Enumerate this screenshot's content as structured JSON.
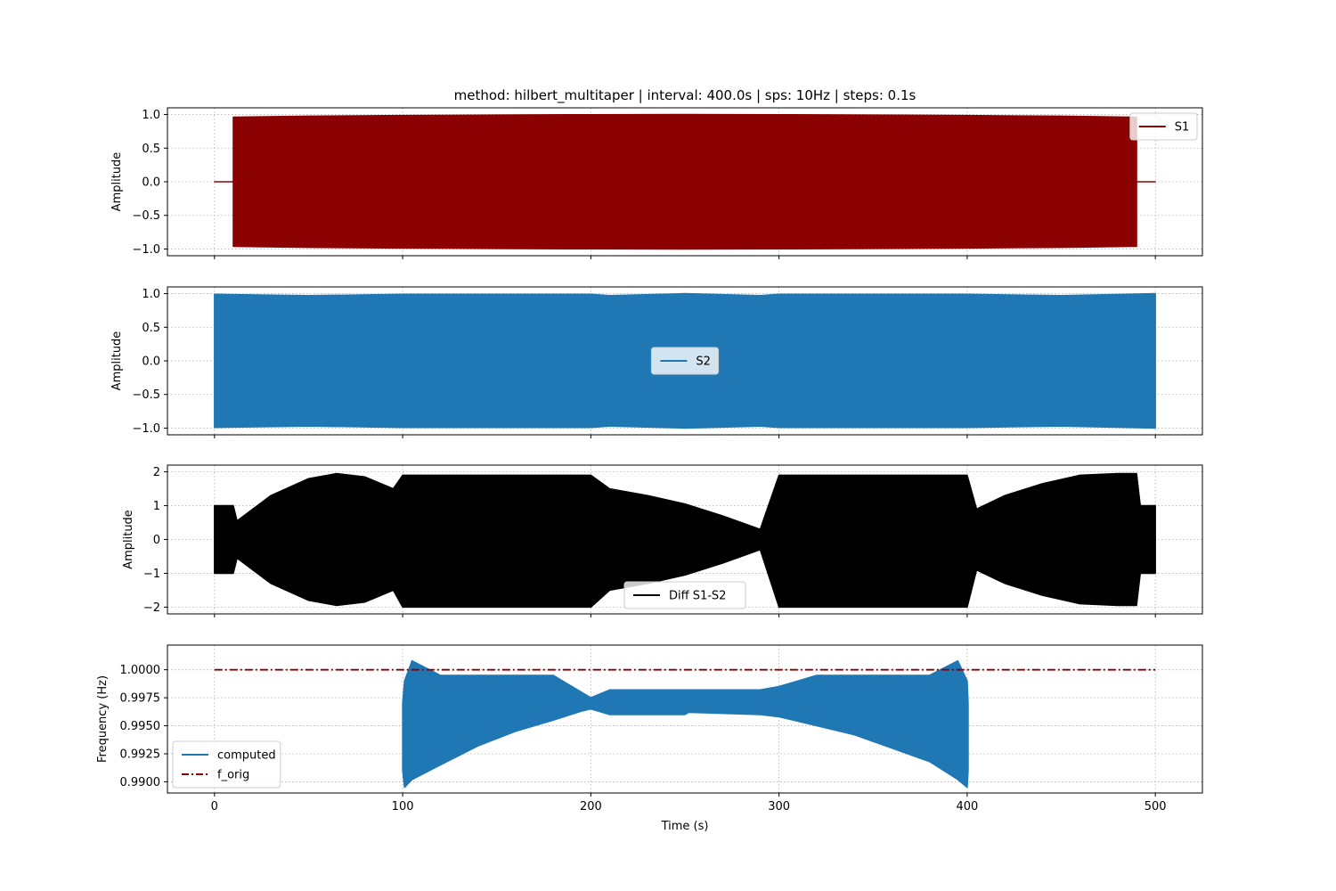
{
  "chart_data": {
    "title": "method: hilbert_multitaper | interval: 400.0s  |  sps: 10Hz  |  steps: 0.1s",
    "xlabel": "Time (s)",
    "xlim": [
      -25,
      525
    ],
    "xticks": [
      0,
      100,
      200,
      300,
      400,
      500
    ],
    "xtick_labels": [
      "0",
      "100",
      "200",
      "300",
      "400",
      "500"
    ],
    "grid": true,
    "panels": [
      {
        "id": "s1",
        "type": "line",
        "ylabel": "Amplitude",
        "ylim": [
          -1.1,
          1.1
        ],
        "yticks": [
          -1.0,
          -0.5,
          0.0,
          0.5,
          1.0
        ],
        "ytick_labels": [
          "−1.0",
          "−0.5",
          "0.0",
          "0.5",
          "1.0"
        ],
        "legend": {
          "position": "upper-right",
          "entries": [
            {
              "name": "S1",
              "color": "#8b0000",
              "style": "solid"
            }
          ]
        },
        "series": [
          {
            "name": "S1",
            "color": "#8b0000",
            "x": [
              0,
              10,
              10,
              50,
              100,
              150,
              200,
              250,
              300,
              350,
              400,
              450,
              490,
              490,
              500
            ],
            "upper": [
              0,
              0,
              0.96,
              0.975,
              0.985,
              0.993,
              0.998,
              1.0,
              0.998,
              0.993,
              0.985,
              0.975,
              0.96,
              0,
              0
            ],
            "lower": [
              0,
              0,
              -0.96,
              -0.975,
              -0.985,
              -0.993,
              -0.998,
              -1.0,
              -0.998,
              -0.993,
              -0.985,
              -0.975,
              -0.96,
              0,
              0
            ]
          }
        ]
      },
      {
        "id": "s2",
        "type": "line",
        "ylabel": "Amplitude",
        "ylim": [
          -1.1,
          1.1
        ],
        "yticks": [
          -1.0,
          -0.5,
          0.0,
          0.5,
          1.0
        ],
        "ytick_labels": [
          "−1.0",
          "−0.5",
          "0.0",
          "0.5",
          "1.0"
        ],
        "legend": {
          "position": "center",
          "entries": [
            {
              "name": "S2",
              "color": "#1f77b4",
              "style": "solid"
            }
          ]
        },
        "series": [
          {
            "name": "S2",
            "color": "#1f77b4",
            "x": [
              0,
              50,
              100,
              150,
              200,
              210,
              250,
              290,
              300,
              350,
              400,
              450,
              500
            ],
            "upper": [
              0.99,
              0.97,
              0.99,
              0.99,
              0.99,
              0.97,
              1.0,
              0.97,
              0.99,
              0.99,
              0.99,
              0.97,
              1.0
            ],
            "lower": [
              -0.99,
              -0.97,
              -0.99,
              -0.99,
              -0.99,
              -0.97,
              -1.0,
              -0.97,
              -0.99,
              -0.99,
              -0.99,
              -0.97,
              -1.0
            ]
          }
        ]
      },
      {
        "id": "diff",
        "type": "line",
        "ylabel": "Amplitude",
        "ylim": [
          -2.2,
          2.2
        ],
        "yticks": [
          -2,
          -1,
          0,
          1,
          2
        ],
        "ytick_labels": [
          "−2",
          "−1",
          "0",
          "1",
          "2"
        ],
        "legend": {
          "position": "lower-center",
          "entries": [
            {
              "name": "Diff S1-S2",
              "color": "#000000",
              "style": "solid"
            }
          ]
        },
        "series": [
          {
            "name": "Diff S1-S2",
            "color": "#000000",
            "x": [
              0,
              10,
              12,
              30,
              50,
              65,
              80,
              95,
              100,
              150,
              200,
              210,
              230,
              250,
              270,
              290,
              300,
              350,
              400,
              405,
              420,
              440,
              460,
              480,
              490,
              492,
              500
            ],
            "upper": [
              1.0,
              1.0,
              0.55,
              1.3,
              1.8,
              1.95,
              1.85,
              1.5,
              1.9,
              1.9,
              1.9,
              1.5,
              1.3,
              1.05,
              0.7,
              0.3,
              1.9,
              1.9,
              1.9,
              0.9,
              1.3,
              1.65,
              1.9,
              1.95,
              1.95,
              1.0,
              1.0
            ],
            "lower": [
              -1.0,
              -1.0,
              -0.55,
              -1.3,
              -1.8,
              -1.95,
              -1.85,
              -1.5,
              -2.0,
              -2.0,
              -2.0,
              -1.5,
              -1.3,
              -1.05,
              -0.7,
              -0.3,
              -2.0,
              -2.0,
              -2.0,
              -0.9,
              -1.3,
              -1.65,
              -1.9,
              -1.95,
              -1.95,
              -1.0,
              -1.0
            ]
          }
        ]
      },
      {
        "id": "freq",
        "type": "line",
        "ylabel": "Frequency (Hz)",
        "ylim": [
          0.989,
          1.0022
        ],
        "yticks": [
          0.99,
          0.9925,
          0.995,
          0.9975,
          1.0
        ],
        "ytick_labels": [
          "0.9900",
          "0.9925",
          "0.9950",
          "0.9975",
          "1.0000"
        ],
        "legend": {
          "position": "lower-left",
          "entries": [
            {
              "name": "computed",
              "color": "#1f77b4",
              "style": "solid"
            },
            {
              "name": "f_orig",
              "color": "#8b0000",
              "style": "dashdot"
            }
          ]
        },
        "series": [
          {
            "name": "computed",
            "color": "#1f77b4",
            "x": [
              100,
              101,
              105,
              120,
              140,
              160,
              180,
              195,
              200,
              210,
              250,
              252,
              290,
              300,
              320,
              340,
              360,
              380,
              395,
              400,
              400.5
            ],
            "upper": [
              0.997,
              0.999,
              1.0008,
              0.9995,
              0.9995,
              0.9995,
              0.9995,
              0.998,
              0.9975,
              0.9982,
              0.9982,
              0.9982,
              0.9982,
              0.9985,
              0.9995,
              0.9995,
              0.9995,
              0.9995,
              1.0008,
              0.999,
              0.997
            ],
            "lower": [
              0.991,
              0.9895,
              0.9902,
              0.9915,
              0.9932,
              0.9945,
              0.9955,
              0.9963,
              0.9965,
              0.996,
              0.996,
              0.9962,
              0.996,
              0.9958,
              0.995,
              0.9942,
              0.993,
              0.9918,
              0.9902,
              0.9895,
              0.991
            ]
          },
          {
            "name": "f_orig",
            "color": "#8b0000",
            "x": [
              0,
              500
            ],
            "y": [
              1.0,
              1.0
            ]
          }
        ]
      }
    ]
  }
}
